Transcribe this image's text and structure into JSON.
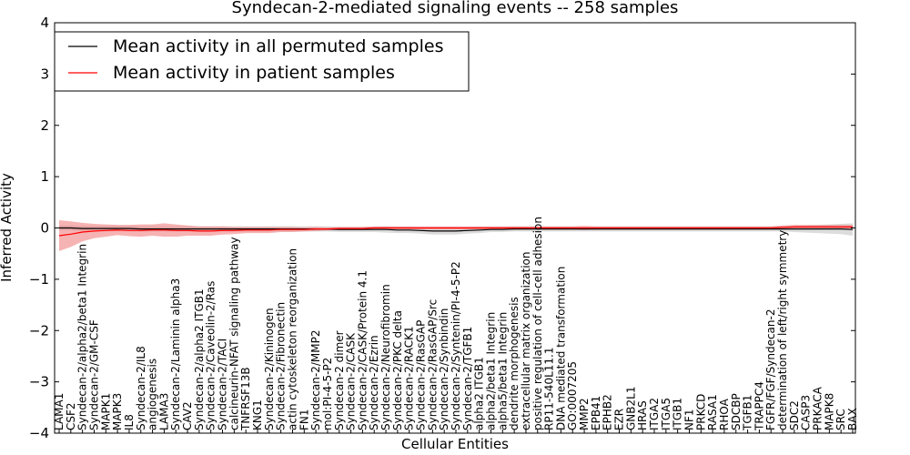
{
  "chart_data": {
    "type": "line",
    "title": "Syndecan-2-mediated signaling events -- 258 samples",
    "xlabel": "Cellular Entities",
    "ylabel": "Inferred Activity",
    "ylim": [
      -4,
      4
    ],
    "yticks": [
      4,
      3,
      2,
      1,
      0,
      -1,
      -2,
      -3,
      -4
    ],
    "ytick_labels": [
      "4",
      "3",
      "2",
      "1",
      "0",
      "−1",
      "−2",
      "−3",
      "−4"
    ],
    "legend_position": "top-left",
    "categories": [
      "LAMA1",
      "CSF2",
      "Syndecan-2/alpha2/beta1 Integrin",
      "Syndecan-2/GM-CSF",
      "MAPK1",
      "MAPK3",
      "IL8",
      "Syndecan-2/IL8",
      "angiogenesis",
      "LAMA3",
      "Syndecan-2/Laminin alpha3",
      "CAV2",
      "Syndecan-2/alpha2 ITGB1",
      "Syndecan-2/Caveolin-2/Ras",
      "Syndecan-2/TACI",
      "calcineurin-NFAT signaling pathway",
      "TNFRSF13B",
      "KNG1",
      "Syndecan-2/Kininogen",
      "Syndecan-2/Fibronectin",
      "actin cytoskeleton reorganization",
      "FN1",
      "Syndecan-2/MMP2",
      "mol:PI-4-5-P2",
      "Syndecan-2 dimer",
      "Syndecan-2/CASK",
      "Syndecan-2/CASK/Protein 4.1",
      "Syndecan-2/Ezrin",
      "Syndecan-2/Neurofibromin",
      "Syndecan-2/PKC delta",
      "Syndecan-2/RACK1",
      "Syndecan-2/RasGAP",
      "Syndecan-2/RasGAP/Src",
      "Syndecan-2/Synbindin",
      "Syndecan-2/Syntenin/PI-4-5-P2",
      "Syndecan-2/TGFB1",
      "alpha2 ITGB1",
      "alpha2/beta1 Integrin",
      "alpha5/beta1 Integrin",
      "dendrite morphogenesis",
      "extracellular matrix organization",
      "positive regulation of cell-cell adhesion",
      "RP11-540L11.1",
      "DNA mediated transformation",
      "GO:0007205",
      "MMP2",
      "EPB41",
      "EPHB2",
      "EZR",
      "GNB2L1",
      "HRAS",
      "ITGA2",
      "ITGA5",
      "ITGB1",
      "NF1",
      "PRKCD",
      "RASA1",
      "RHOA",
      "SDCBP",
      "TGFB1",
      "TRAPPC4",
      "FGFR/FGF/Syndecan-2",
      "determination of left/right symmetry",
      "SDC2",
      "CASP3",
      "PRKACA",
      "MAPK8",
      "SRC",
      "BAX"
    ],
    "series": [
      {
        "name": "Mean activity in all permuted samples",
        "color": "#000000",
        "band_color": "#c0c0c0",
        "values": [
          0.0,
          0.0,
          -0.01,
          -0.01,
          -0.01,
          -0.01,
          -0.01,
          -0.02,
          -0.02,
          -0.02,
          -0.02,
          -0.02,
          -0.02,
          -0.02,
          -0.02,
          -0.02,
          -0.02,
          -0.02,
          -0.02,
          -0.02,
          -0.02,
          -0.02,
          -0.02,
          -0.02,
          -0.03,
          -0.03,
          -0.03,
          -0.03,
          -0.03,
          -0.04,
          -0.04,
          -0.05,
          -0.06,
          -0.06,
          -0.06,
          -0.05,
          -0.04,
          -0.03,
          -0.03,
          -0.02,
          -0.02,
          -0.02,
          -0.02,
          -0.02,
          -0.02,
          -0.02,
          -0.02,
          -0.02,
          -0.02,
          -0.02,
          -0.02,
          -0.02,
          -0.02,
          -0.02,
          -0.02,
          -0.02,
          -0.02,
          -0.02,
          -0.02,
          -0.02,
          -0.02,
          -0.02,
          -0.02,
          -0.02,
          -0.02,
          -0.02,
          -0.02,
          -0.02,
          -0.03
        ],
        "std": [
          0.05,
          0.05,
          0.05,
          0.05,
          0.05,
          0.05,
          0.05,
          0.05,
          0.05,
          0.05,
          0.05,
          0.05,
          0.05,
          0.05,
          0.05,
          0.05,
          0.05,
          0.05,
          0.05,
          0.05,
          0.05,
          0.05,
          0.05,
          0.05,
          0.05,
          0.05,
          0.05,
          0.05,
          0.06,
          0.06,
          0.06,
          0.06,
          0.07,
          0.07,
          0.07,
          0.06,
          0.06,
          0.05,
          0.05,
          0.05,
          0.05,
          0.05,
          0.05,
          0.05,
          0.05,
          0.05,
          0.05,
          0.05,
          0.05,
          0.05,
          0.05,
          0.05,
          0.05,
          0.05,
          0.05,
          0.05,
          0.05,
          0.05,
          0.05,
          0.05,
          0.05,
          0.05,
          0.05,
          0.06,
          0.07,
          0.08,
          0.09,
          0.1,
          0.12
        ]
      },
      {
        "name": "Mean activity in patient samples",
        "color": "#ff0000",
        "band_color": "#f08080",
        "values": [
          -0.15,
          -0.12,
          -0.08,
          -0.06,
          -0.05,
          -0.04,
          -0.05,
          -0.05,
          -0.04,
          -0.04,
          -0.05,
          -0.05,
          -0.06,
          -0.06,
          -0.05,
          -0.05,
          -0.04,
          -0.04,
          -0.04,
          -0.03,
          -0.03,
          -0.03,
          -0.02,
          -0.02,
          -0.01,
          -0.01,
          -0.01,
          0.0,
          0.0,
          0.0,
          0.0,
          0.0,
          0.0,
          0.0,
          0.0,
          0.0,
          0.0,
          0.0,
          0.0,
          0.0,
          0.0,
          0.0,
          0.0,
          0.0,
          0.0,
          0.0,
          0.0,
          0.0,
          0.0,
          0.0,
          0.0,
          0.0,
          0.0,
          0.0,
          0.0,
          0.0,
          0.0,
          0.0,
          0.0,
          0.0,
          0.0,
          0.0,
          0.01,
          0.02,
          0.02,
          0.02,
          0.02,
          0.02,
          0.02
        ],
        "std": [
          0.3,
          0.25,
          0.18,
          0.14,
          0.12,
          0.1,
          0.11,
          0.12,
          0.11,
          0.13,
          0.12,
          0.1,
          0.09,
          0.09,
          0.08,
          0.07,
          0.06,
          0.06,
          0.06,
          0.05,
          0.05,
          0.04,
          0.04,
          0.03,
          0.03,
          0.03,
          0.03,
          0.03,
          0.03,
          0.03,
          0.03,
          0.03,
          0.03,
          0.03,
          0.03,
          0.03,
          0.03,
          0.03,
          0.03,
          0.03,
          0.03,
          0.03,
          0.03,
          0.03,
          0.03,
          0.04,
          0.03,
          0.03,
          0.03,
          0.03,
          0.03,
          0.03,
          0.03,
          0.03,
          0.03,
          0.03,
          0.03,
          0.03,
          0.03,
          0.03,
          0.03,
          0.03,
          0.04,
          0.04,
          0.04,
          0.04,
          0.04,
          0.04,
          0.04
        ]
      }
    ]
  }
}
